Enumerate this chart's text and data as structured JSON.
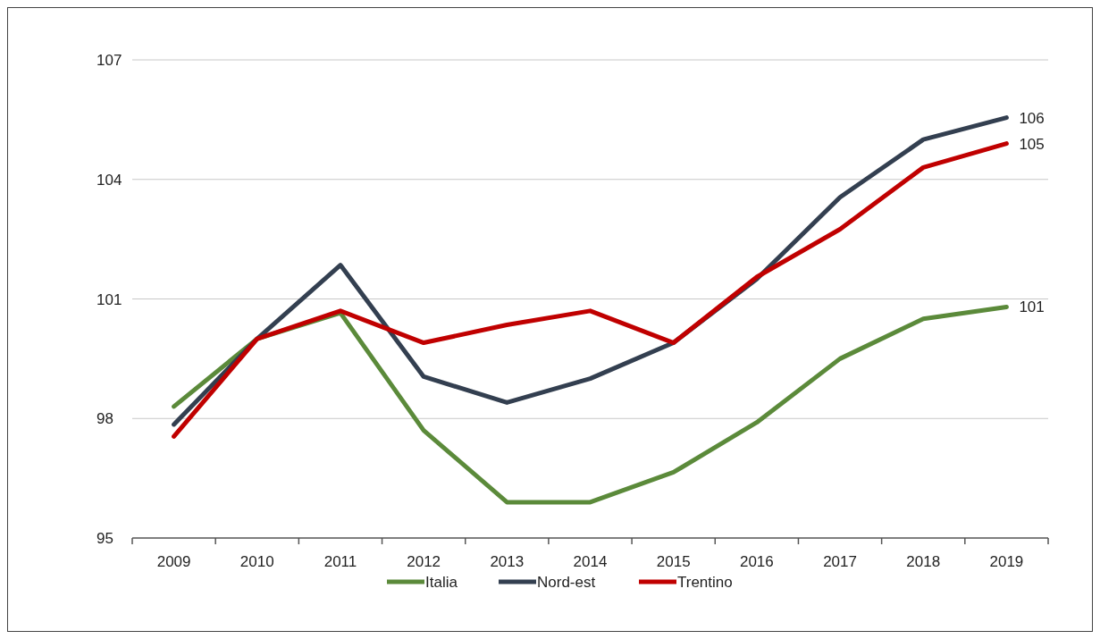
{
  "chart_data": {
    "type": "line",
    "categories": [
      "2009",
      "2010",
      "2011",
      "2012",
      "2013",
      "2014",
      "2015",
      "2016",
      "2017",
      "2018",
      "2019"
    ],
    "series": [
      {
        "name": "Italia",
        "color": "#5b8a3a",
        "values": [
          98.3,
          100.0,
          100.65,
          97.7,
          95.9,
          95.9,
          96.65,
          97.9,
          99.5,
          100.5,
          100.8
        ],
        "value_labels": [
          null,
          null,
          null,
          null,
          null,
          null,
          null,
          null,
          null,
          null,
          "101"
        ]
      },
      {
        "name": "Nord-est",
        "color": "#333f50",
        "values": [
          97.85,
          100.0,
          101.85,
          99.05,
          98.4,
          99.0,
          99.9,
          101.5,
          103.55,
          105.0,
          105.55
        ],
        "value_labels": [
          null,
          null,
          null,
          null,
          null,
          null,
          null,
          null,
          null,
          null,
          "106"
        ]
      },
      {
        "name": "Trentino",
        "color": "#c00000",
        "values": [
          97.55,
          100.0,
          100.7,
          99.9,
          100.35,
          100.7,
          99.9,
          101.55,
          102.75,
          104.3,
          104.9
        ],
        "value_labels": [
          null,
          null,
          null,
          null,
          null,
          null,
          null,
          null,
          null,
          null,
          "105"
        ]
      }
    ],
    "ylim": [
      95,
      107
    ],
    "yticks": [
      95,
      98,
      101,
      104,
      107
    ],
    "grid": "y",
    "legend": "bottom",
    "marker": "none",
    "line_style": "solid"
  }
}
